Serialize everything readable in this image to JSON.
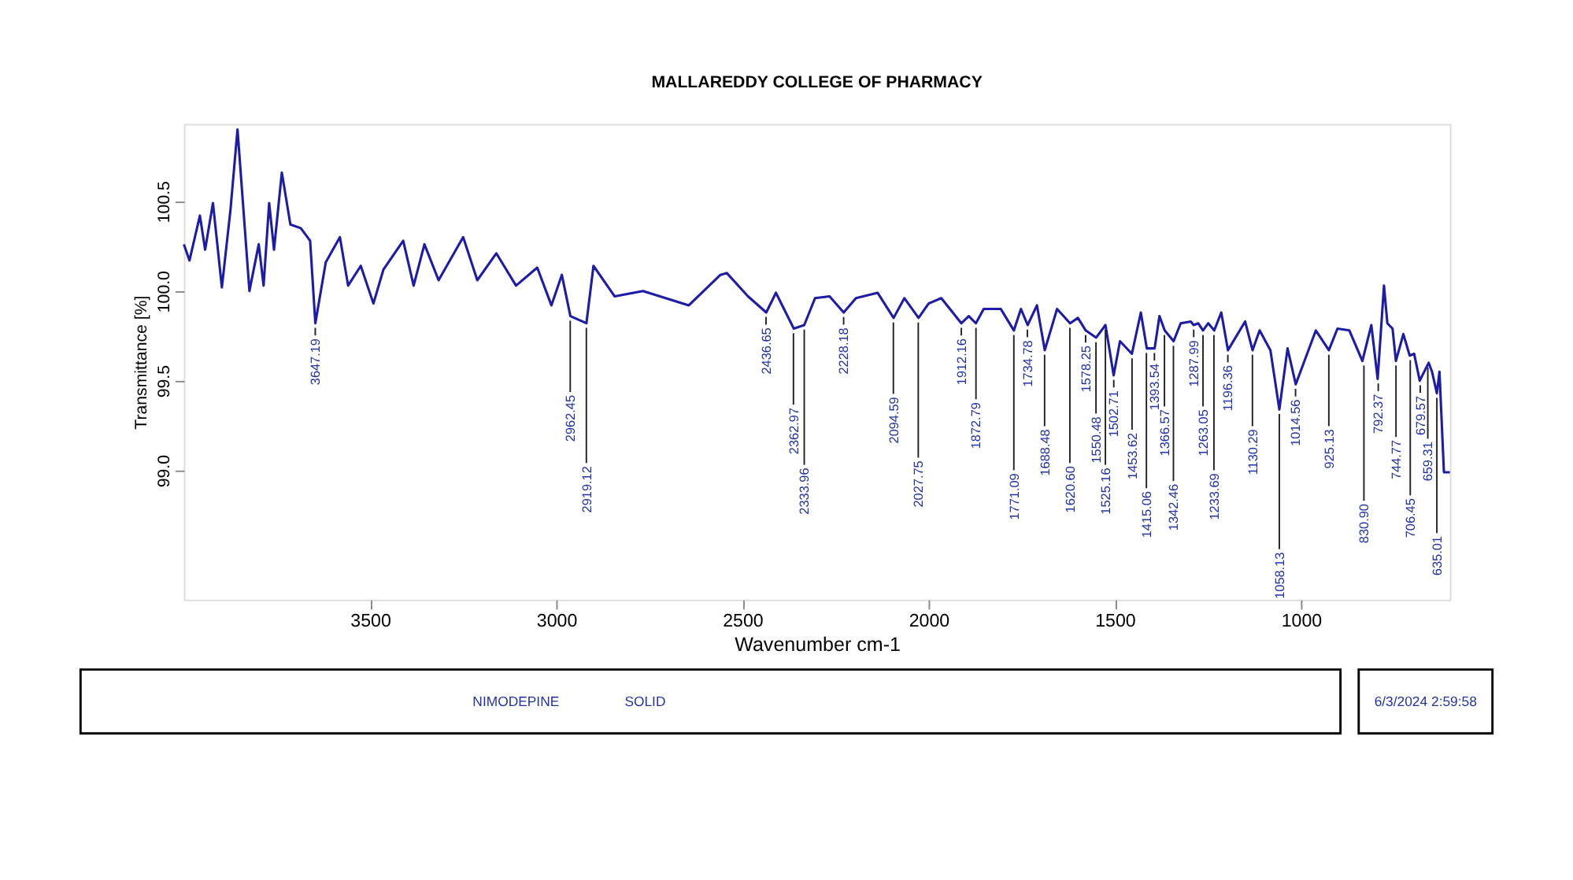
{
  "chart_data": {
    "type": "line",
    "title": "MALLAREDDY COLLEGE OF PHARMACY",
    "xlabel": "Wavenumber cm-1",
    "ylabel": "Transmittance [%]",
    "xlim": [
      4000,
      600
    ],
    "ylim": [
      98.28,
      100.93
    ],
    "xticks": [
      3500,
      3000,
      2500,
      2000,
      1500,
      1000
    ],
    "yticks": [
      {
        "value": 99.0,
        "label": "99.0"
      },
      {
        "value": 99.5,
        "label": "99.5"
      },
      {
        "value": 100.0,
        "label": "100.0"
      },
      {
        "value": 100.5,
        "label": "100.5"
      }
    ],
    "grid": false,
    "series": [
      {
        "color": "#1c1ca8",
        "x": [
          4000,
          3985,
          3957,
          3943,
          3922,
          3898,
          3875,
          3856,
          3824,
          3799,
          3786,
          3771,
          3758,
          3737,
          3714,
          3686,
          3661,
          3647,
          3619,
          3581,
          3559,
          3525,
          3491,
          3464,
          3411,
          3383,
          3354,
          3316,
          3250,
          3212,
          3161,
          3108,
          3051,
          3013,
          2985,
          2962,
          2919,
          2900,
          2843,
          2767,
          2644,
          2559,
          2542,
          2485,
          2436,
          2410,
          2362,
          2334,
          2305,
          2266,
          2228,
          2195,
          2137,
          2094,
          2065,
          2027,
          2000,
          1966,
          1912,
          1892,
          1873,
          1852,
          1806,
          1771,
          1752,
          1734,
          1709,
          1688,
          1655,
          1620,
          1599,
          1578,
          1550,
          1525,
          1503,
          1486,
          1454,
          1430,
          1414,
          1393,
          1380,
          1366,
          1342,
          1323,
          1296,
          1288,
          1276,
          1263,
          1249,
          1233,
          1214,
          1196,
          1150,
          1130,
          1111,
          1082,
          1058,
          1036,
          1014,
          960,
          925,
          902,
          870,
          835,
          811,
          794,
          777,
          768,
          754,
          745,
          725,
          708,
          696,
          681,
          657,
          648,
          635,
          628,
          616,
          600
        ],
        "values": [
          100.26,
          100.17,
          100.42,
          100.23,
          100.49,
          100.02,
          100.45,
          100.9,
          100.0,
          100.26,
          100.03,
          100.49,
          100.23,
          100.66,
          100.37,
          100.35,
          100.28,
          99.82,
          100.16,
          100.3,
          100.03,
          100.14,
          99.93,
          100.12,
          100.28,
          100.03,
          100.26,
          100.06,
          100.3,
          100.06,
          100.21,
          100.03,
          100.13,
          99.92,
          100.09,
          99.86,
          99.82,
          100.14,
          99.97,
          100.0,
          99.92,
          100.09,
          100.1,
          99.97,
          99.88,
          99.99,
          99.79,
          99.81,
          99.96,
          99.97,
          99.88,
          99.96,
          99.99,
          99.85,
          99.96,
          99.85,
          99.93,
          99.96,
          99.82,
          99.86,
          99.82,
          99.9,
          99.9,
          99.78,
          99.9,
          99.81,
          99.92,
          99.67,
          99.9,
          99.82,
          99.85,
          99.78,
          99.74,
          99.81,
          99.53,
          99.72,
          99.65,
          99.88,
          99.68,
          99.68,
          99.86,
          99.78,
          99.72,
          99.82,
          99.83,
          99.81,
          99.82,
          99.78,
          99.82,
          99.78,
          99.88,
          99.67,
          99.83,
          99.67,
          99.78,
          99.67,
          99.34,
          99.68,
          99.48,
          99.78,
          99.67,
          99.79,
          99.78,
          99.61,
          99.81,
          99.51,
          100.03,
          99.82,
          99.79,
          99.61,
          99.76,
          99.64,
          99.65,
          99.5,
          99.6,
          99.55,
          99.43,
          99.55,
          98.99,
          98.99
        ]
      }
    ],
    "annotations": [
      {
        "text": "3647.19",
        "x": 3647.19,
        "y": 99.82
      },
      {
        "text": "2962.45",
        "x": 2962.45,
        "y": 99.86
      },
      {
        "text": "2919.12",
        "x": 2919.12,
        "y": 99.82
      },
      {
        "text": "2436.65",
        "x": 2436.65,
        "y": 99.88
      },
      {
        "text": "2362.97",
        "x": 2362.97,
        "y": 99.79
      },
      {
        "text": "2333.96",
        "x": 2333.96,
        "y": 99.81
      },
      {
        "text": "2228.18",
        "x": 2228.18,
        "y": 99.88
      },
      {
        "text": "2094.59",
        "x": 2094.59,
        "y": 99.85
      },
      {
        "text": "2027.75",
        "x": 2027.75,
        "y": 99.85
      },
      {
        "text": "1912.16",
        "x": 1912.16,
        "y": 99.82
      },
      {
        "text": "1872.79",
        "x": 1872.79,
        "y": 99.82
      },
      {
        "text": "1771.09",
        "x": 1771.09,
        "y": 99.78
      },
      {
        "text": "1734.78",
        "x": 1734.78,
        "y": 99.81
      },
      {
        "text": "1688.48",
        "x": 1688.48,
        "y": 99.67
      },
      {
        "text": "1620.60",
        "x": 1620.6,
        "y": 99.82
      },
      {
        "text": "1578.25",
        "x": 1578.25,
        "y": 99.78
      },
      {
        "text": "1550.48",
        "x": 1550.48,
        "y": 99.74
      },
      {
        "text": "1525.16",
        "x": 1525.16,
        "y": 99.81
      },
      {
        "text": "1502.71",
        "x": 1502.71,
        "y": 99.53
      },
      {
        "text": "1453.62",
        "x": 1453.62,
        "y": 99.65
      },
      {
        "text": "1415.06",
        "x": 1415.06,
        "y": 99.68
      },
      {
        "text": "1393.54",
        "x": 1393.54,
        "y": 99.68
      },
      {
        "text": "1366.57",
        "x": 1366.57,
        "y": 99.78
      },
      {
        "text": "1342.46",
        "x": 1342.46,
        "y": 99.72
      },
      {
        "text": "1287.99",
        "x": 1287.99,
        "y": 99.81
      },
      {
        "text": "1263.05",
        "x": 1263.05,
        "y": 99.78
      },
      {
        "text": "1233.69",
        "x": 1233.69,
        "y": 99.78
      },
      {
        "text": "1196.36",
        "x": 1196.36,
        "y": 99.67
      },
      {
        "text": "1130.29",
        "x": 1130.29,
        "y": 99.67
      },
      {
        "text": "1058.13",
        "x": 1058.13,
        "y": 99.34
      },
      {
        "text": "1014.56",
        "x": 1014.56,
        "y": 99.48
      },
      {
        "text": "925.13",
        "x": 925.13,
        "y": 99.67
      },
      {
        "text": "830.90",
        "x": 830.9,
        "y": 99.61
      },
      {
        "text": "792.37",
        "x": 792.37,
        "y": 99.51
      },
      {
        "text": "744.77",
        "x": 744.77,
        "y": 99.61
      },
      {
        "text": "706.45",
        "x": 706.45,
        "y": 99.64
      },
      {
        "text": "679.57",
        "x": 679.57,
        "y": 99.5
      },
      {
        "text": "659.31",
        "x": 659.31,
        "y": 99.6
      },
      {
        "text": "635.01",
        "x": 635.01,
        "y": 99.43
      },
      "NIMODEPINE",
      "SOLID",
      "6/3/2024 2:59:58"
    ]
  }
}
